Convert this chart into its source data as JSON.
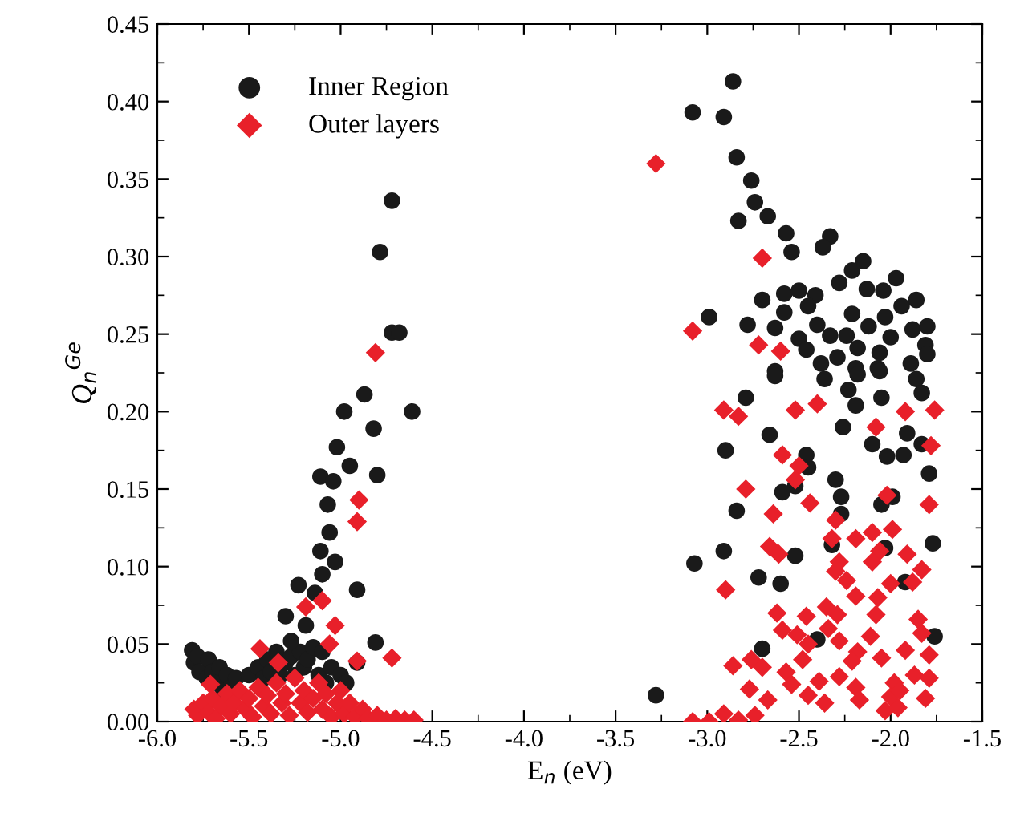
{
  "chart_data": {
    "type": "scatter",
    "xlabel": "E$_{n}$ (eV)",
    "ylabel": "Q$_{n}$$^{Ge}$",
    "xlim": [
      -6.0,
      -1.5
    ],
    "ylim": [
      0,
      0.45
    ],
    "xticks": [
      {
        "value": -6.0,
        "label": "-6.0"
      },
      {
        "value": -5.75,
        "label": null
      },
      {
        "value": -5.5,
        "label": "-5.5"
      },
      {
        "value": -5.25,
        "label": null
      },
      {
        "value": -5.0,
        "label": "-5.0"
      },
      {
        "value": -4.75,
        "label": null
      },
      {
        "value": -4.5,
        "label": "-4.5"
      },
      {
        "value": -4.25,
        "label": null
      },
      {
        "value": -4.0,
        "label": "-4.0"
      },
      {
        "value": -3.75,
        "label": null
      },
      {
        "value": -3.5,
        "label": "-3.5"
      },
      {
        "value": -3.25,
        "label": null
      },
      {
        "value": -3.0,
        "label": "-3.0"
      },
      {
        "value": -2.75,
        "label": null
      },
      {
        "value": -2.5,
        "label": "-2.5"
      },
      {
        "value": -2.25,
        "label": null
      },
      {
        "value": -2.0,
        "label": "-2.0"
      },
      {
        "value": -1.75,
        "label": null
      },
      {
        "value": -1.5,
        "label": "-1.5"
      }
    ],
    "yticks": [
      {
        "value": 0,
        "label": "0.00"
      },
      {
        "value": 0.025,
        "label": null
      },
      {
        "value": 0.05,
        "label": "0.05"
      },
      {
        "value": 0.075,
        "label": null
      },
      {
        "value": 0.1,
        "label": "0.10"
      },
      {
        "value": 0.125,
        "label": null
      },
      {
        "value": 0.15,
        "label": "0.15"
      },
      {
        "value": 0.175,
        "label": null
      },
      {
        "value": 0.2,
        "label": "0.20"
      },
      {
        "value": 0.225,
        "label": null
      },
      {
        "value": 0.25,
        "label": "0.25"
      },
      {
        "value": 0.275,
        "label": null
      },
      {
        "value": 0.3,
        "label": "0.30"
      },
      {
        "value": 0.325,
        "label": null
      },
      {
        "value": 0.35,
        "label": "0.35"
      },
      {
        "value": 0.375,
        "label": null
      },
      {
        "value": 0.4,
        "label": "0.40"
      },
      {
        "value": 0.425,
        "label": null
      },
      {
        "value": 0.45,
        "label": "0.45"
      }
    ],
    "grid": false,
    "legend": "top left",
    "series": [
      {
        "name": "Inner Region",
        "color": "#1a1a1a",
        "marker": "circle",
        "x": [
          -5.81,
          -5.8,
          -5.78,
          -5.77,
          -5.73,
          -5.72,
          -5.7,
          -5.68,
          -5.66,
          -5.64,
          -5.62,
          -5.6,
          -5.57,
          -5.5,
          -5.45,
          -5.42,
          -5.4,
          -5.38,
          -5.35,
          -5.33,
          -5.3,
          -5.27,
          -5.25,
          -5.22,
          -5.2,
          -5.18,
          -5.15,
          -5.12,
          -5.1,
          -5.08,
          -5.05,
          -5.0,
          -4.97,
          -4.72,
          -4.785,
          -4.72,
          -4.68,
          -4.61,
          -4.87,
          -4.98,
          -4.82,
          -5.02,
          -4.95,
          -4.8,
          -5.11,
          -5.04,
          -5.07,
          -5.06,
          -5.11,
          -5.03,
          -5.1,
          -5.23,
          -5.14,
          -4.91,
          -5.3,
          -5.19,
          -5.27,
          -4.81,
          -4.91,
          -2.86,
          -3.08,
          -2.91,
          -2.84,
          -2.76,
          -2.74,
          -2.83,
          -2.67,
          -2.57,
          -2.54,
          -2.33,
          -2.37,
          -2.15,
          -2.21,
          -1.97,
          -2.28,
          -2.7,
          -2.58,
          -2.5,
          -2.41,
          -2.13,
          -2.04,
          -1.86,
          -1.94,
          -2.45,
          -2.21,
          -2.99,
          -2.58,
          -2.03,
          -2.78,
          -2.63,
          -2.4,
          -2.12,
          -1.88,
          -1.8,
          -2.5,
          -2.33,
          -2.24,
          -2.0,
          -1.81,
          -2.46,
          -2.18,
          -2.06,
          -2.29,
          -1.8,
          -2.38,
          -2.19,
          -1.89,
          -2.07,
          -2.63,
          -2.63,
          -2.36,
          -2.18,
          -2.06,
          -1.86,
          -2.23,
          -1.83,
          -2.79,
          -2.05,
          -2.19,
          -2.26,
          -2.66,
          -1.91,
          -1.83,
          -2.1,
          -2.9,
          -2.02,
          -1.93,
          -2.46,
          -2.45,
          -1.79,
          -2.3,
          -2.52,
          -2.59,
          -2.27,
          -1.99,
          -2.05,
          -2.84,
          -2.27,
          -2.32,
          -2.03,
          -1.77,
          -2.91,
          -2.52,
          -3.07,
          -2.72,
          -2.6,
          -1.92,
          -2.4,
          -1.76,
          -2.7,
          -3.28
        ],
        "values": [
          0.046,
          0.038,
          0.042,
          0.032,
          0.028,
          0.04,
          0.032,
          0.025,
          0.035,
          0.02,
          0.03,
          0.022,
          0.028,
          0.03,
          0.035,
          0.028,
          0.04,
          0.032,
          0.045,
          0.03,
          0.038,
          0.042,
          0.03,
          0.045,
          0.035,
          0.04,
          0.048,
          0.03,
          0.045,
          0.025,
          0.035,
          0.03,
          0.025,
          0.336,
          0.303,
          0.251,
          0.251,
          0.2,
          0.211,
          0.2,
          0.189,
          0.177,
          0.165,
          0.159,
          0.158,
          0.155,
          0.14,
          0.122,
          0.11,
          0.103,
          0.095,
          0.088,
          0.083,
          0.085,
          0.068,
          0.062,
          0.052,
          0.051,
          0.038,
          0.413,
          0.393,
          0.39,
          0.364,
          0.349,
          0.335,
          0.323,
          0.326,
          0.315,
          0.303,
          0.313,
          0.306,
          0.297,
          0.291,
          0.286,
          0.283,
          0.272,
          0.276,
          0.278,
          0.275,
          0.279,
          0.278,
          0.272,
          0.268,
          0.268,
          0.263,
          0.261,
          0.264,
          0.261,
          0.256,
          0.254,
          0.256,
          0.255,
          0.253,
          0.255,
          0.247,
          0.249,
          0.249,
          0.248,
          0.243,
          0.24,
          0.241,
          0.238,
          0.235,
          0.237,
          0.231,
          0.228,
          0.231,
          0.228,
          0.226,
          0.223,
          0.221,
          0.224,
          0.226,
          0.221,
          0.214,
          0.212,
          0.209,
          0.209,
          0.204,
          0.19,
          0.185,
          0.186,
          0.179,
          0.179,
          0.175,
          0.171,
          0.172,
          0.172,
          0.164,
          0.16,
          0.156,
          0.152,
          0.148,
          0.145,
          0.145,
          0.14,
          0.136,
          0.134,
          0.114,
          0.112,
          0.115,
          0.11,
          0.107,
          0.102,
          0.093,
          0.089,
          0.09,
          0.053,
          0.055,
          0.047,
          0.017
        ]
      },
      {
        "name": "Outer layers",
        "color": "#e8202a",
        "marker": "diamond",
        "x": [
          -5.8,
          -5.78,
          -5.75,
          -5.72,
          -5.7,
          -5.68,
          -5.65,
          -5.62,
          -5.6,
          -5.58,
          -5.55,
          -5.52,
          -5.5,
          -5.48,
          -5.45,
          -5.42,
          -5.4,
          -5.38,
          -5.35,
          -5.32,
          -5.3,
          -5.28,
          -5.25,
          -5.22,
          -5.2,
          -5.18,
          -5.15,
          -5.12,
          -5.1,
          -5.08,
          -5.05,
          -5.02,
          -5.0,
          -4.98,
          -4.95,
          -4.92,
          -4.88,
          -4.85,
          -4.8,
          -4.75,
          -4.7,
          -4.65,
          -4.6,
          -4.81,
          -4.9,
          -4.91,
          -5.1,
          -5.19,
          -5.03,
          -5.06,
          -4.72,
          -5.44,
          -5.34,
          -5.71,
          -4.91,
          -3.28,
          -2.7,
          -3.08,
          -2.72,
          -2.6,
          -2.91,
          -2.83,
          -2.52,
          -2.4,
          -1.92,
          -1.76,
          -2.08,
          -1.78,
          -2.59,
          -2.5,
          -2.52,
          -2.79,
          -2.02,
          -2.44,
          -1.79,
          -2.64,
          -2.3,
          -2.32,
          -2.19,
          -2.1,
          -1.99,
          -2.66,
          -2.61,
          -2.06,
          -1.91,
          -2.1,
          -2.28,
          -1.83,
          -2.3,
          -2.24,
          -2.0,
          -1.88,
          -2.9,
          -2.19,
          -2.07,
          -2.35,
          -2.62,
          -2.46,
          -2.29,
          -2.08,
          -1.85,
          -2.59,
          -2.51,
          -2.34,
          -1.83,
          -2.11,
          -2.45,
          -2.28,
          -2.18,
          -1.92,
          -1.79,
          -2.76,
          -2.48,
          -2.05,
          -2.86,
          -2.7,
          -2.21,
          -2.57,
          -2.28,
          -2.39,
          -1.87,
          -1.79,
          -2.77,
          -2.54,
          -2.19,
          -1.98,
          -2.45,
          -2.36,
          -2.17,
          -2.67,
          -2.0,
          -1.95,
          -1.81,
          -2.03,
          -2.91,
          -3.08,
          -2.99,
          -2.83,
          -2.74,
          -1.96
        ],
        "values": [
          0.008,
          0.004,
          0.012,
          0.006,
          0.015,
          0.002,
          0.01,
          0.018,
          0.005,
          0.012,
          0.02,
          0.008,
          0.015,
          0.003,
          0.022,
          0.01,
          0.017,
          0.005,
          0.025,
          0.012,
          0.018,
          0.004,
          0.028,
          0.012,
          0.02,
          0.006,
          0.015,
          0.025,
          0.008,
          0.018,
          0.003,
          0.012,
          0.02,
          0.005,
          0.012,
          0.003,
          0.008,
          0.002,
          0.004,
          0.001,
          0.002,
          0.001,
          0.001,
          0.238,
          0.143,
          0.129,
          0.078,
          0.074,
          0.062,
          0.05,
          0.041,
          0.047,
          0.038,
          0.024,
          0.039,
          0.36,
          0.299,
          0.252,
          0.243,
          0.239,
          0.201,
          0.197,
          0.201,
          0.205,
          0.2,
          0.201,
          0.19,
          0.178,
          0.172,
          0.165,
          0.156,
          0.15,
          0.146,
          0.141,
          0.14,
          0.134,
          0.13,
          0.118,
          0.118,
          0.122,
          0.124,
          0.113,
          0.108,
          0.11,
          0.108,
          0.103,
          0.103,
          0.098,
          0.097,
          0.091,
          0.089,
          0.09,
          0.085,
          0.081,
          0.08,
          0.074,
          0.07,
          0.068,
          0.069,
          0.069,
          0.066,
          0.059,
          0.056,
          0.06,
          0.057,
          0.055,
          0.05,
          0.052,
          0.045,
          0.046,
          0.043,
          0.04,
          0.04,
          0.041,
          0.036,
          0.035,
          0.039,
          0.032,
          0.029,
          0.026,
          0.03,
          0.028,
          0.021,
          0.024,
          0.022,
          0.025,
          0.017,
          0.012,
          0.014,
          0.014,
          0.016,
          0.02,
          0.015,
          0.007,
          0.005,
          0.0,
          0.0,
          0.001,
          0.004,
          0.009
        ]
      }
    ]
  }
}
